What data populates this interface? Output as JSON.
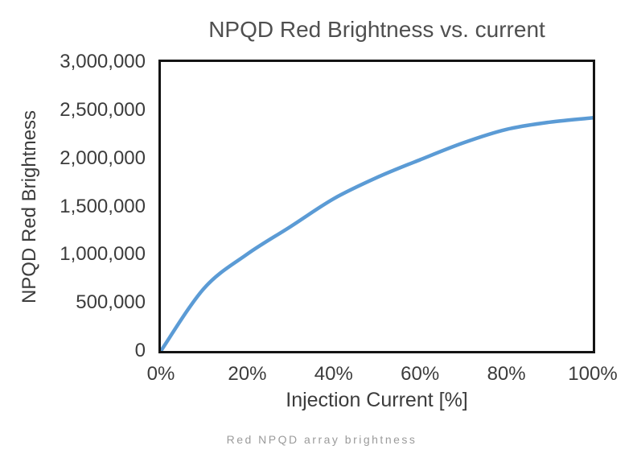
{
  "chart_data": {
    "type": "line",
    "title": "NPQD Red Brightness vs. current",
    "xlabel": "Injection Current [%]",
    "ylabel": "NPQD Red Brightness",
    "x": [
      0,
      10,
      20,
      30,
      40,
      50,
      60,
      70,
      80,
      90,
      100
    ],
    "y": [
      0,
      650000,
      1005000,
      1290000,
      1580000,
      1800000,
      1985000,
      2160000,
      2300000,
      2375000,
      2420000
    ],
    "xlim": [
      0,
      100
    ],
    "ylim": [
      0,
      3000000
    ],
    "x_ticks": [
      {
        "value": 0,
        "label": "0%"
      },
      {
        "value": 20,
        "label": "20%"
      },
      {
        "value": 40,
        "label": "40%"
      },
      {
        "value": 60,
        "label": "60%"
      },
      {
        "value": 80,
        "label": "80%"
      },
      {
        "value": 100,
        "label": "100%"
      }
    ],
    "y_ticks": [
      {
        "value": 0,
        "label": "0"
      },
      {
        "value": 500000,
        "label": "500,000"
      },
      {
        "value": 1000000,
        "label": "1,000,000"
      },
      {
        "value": 1500000,
        "label": "1,500,000"
      },
      {
        "value": 2000000,
        "label": "2,000,000"
      },
      {
        "value": 2500000,
        "label": "2,500,000"
      },
      {
        "value": 3000000,
        "label": "3,000,000"
      }
    ],
    "grid": false,
    "legend": false,
    "line_color": "#5B9BD5"
  },
  "caption": {
    "text": "Red NPQD array brightness"
  },
  "colors": {
    "title_text": "#4f4f4f",
    "axis_text": "#3c3c3c",
    "plot_border": "#141414",
    "caption_text": "#9b9b9b",
    "line": "#5B9BD5"
  }
}
